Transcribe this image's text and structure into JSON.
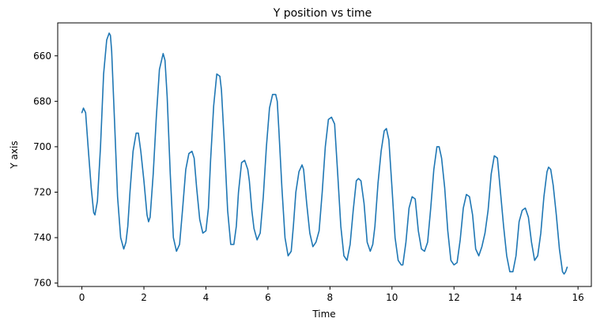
{
  "chart_data": {
    "type": "line",
    "title": "Y position vs time",
    "xlabel": "Time",
    "ylabel": "Y axis",
    "xlim": [
      -0.78,
      16.43
    ],
    "ylim": [
      761.5,
      645.5
    ],
    "y_inverted": true,
    "xticks": [
      0,
      2,
      4,
      6,
      8,
      10,
      12,
      14,
      16
    ],
    "xtick_labels": [
      "0",
      "2",
      "4",
      "6",
      "8",
      "10",
      "12",
      "14",
      "16"
    ],
    "yticks": [
      660,
      680,
      700,
      720,
      740,
      760
    ],
    "ytick_labels": [
      "660",
      "680",
      "700",
      "720",
      "740",
      "760"
    ],
    "grid": false,
    "colors": {
      "line": "#1f77b4",
      "axes": "#000000",
      "background": "#ffffff"
    },
    "series": [
      {
        "name": "Y position",
        "x": [
          0.0,
          0.05,
          0.12,
          0.2,
          0.3,
          0.38,
          0.42,
          0.5,
          0.6,
          0.7,
          0.8,
          0.88,
          0.92,
          0.96,
          1.05,
          1.15,
          1.25,
          1.35,
          1.42,
          1.48,
          1.55,
          1.65,
          1.75,
          1.82,
          1.9,
          2.0,
          2.1,
          2.15,
          2.2,
          2.3,
          2.4,
          2.5,
          2.62,
          2.68,
          2.75,
          2.85,
          2.95,
          3.05,
          3.15,
          3.25,
          3.35,
          3.45,
          3.55,
          3.62,
          3.7,
          3.8,
          3.9,
          4.0,
          4.08,
          4.15,
          4.25,
          4.35,
          4.45,
          4.5,
          4.6,
          4.7,
          4.8,
          4.9,
          4.98,
          5.05,
          5.15,
          5.25,
          5.35,
          5.4,
          5.48,
          5.55,
          5.65,
          5.75,
          5.85,
          5.95,
          6.05,
          6.15,
          6.25,
          6.3,
          6.35,
          6.45,
          6.55,
          6.65,
          6.75,
          6.82,
          6.9,
          7.0,
          7.1,
          7.15,
          7.25,
          7.35,
          7.45,
          7.55,
          7.65,
          7.75,
          7.85,
          7.95,
          8.05,
          8.15,
          8.25,
          8.35,
          8.45,
          8.55,
          8.65,
          8.75,
          8.85,
          8.92,
          9.0,
          9.1,
          9.2,
          9.3,
          9.38,
          9.45,
          9.55,
          9.65,
          9.75,
          9.82,
          9.9,
          10.0,
          10.1,
          10.2,
          10.3,
          10.35,
          10.45,
          10.55,
          10.65,
          10.75,
          10.85,
          10.95,
          11.05,
          11.15,
          11.25,
          11.35,
          11.45,
          11.52,
          11.6,
          11.7,
          11.8,
          11.9,
          12.0,
          12.1,
          12.2,
          12.3,
          12.4,
          12.5,
          12.6,
          12.7,
          12.8,
          12.9,
          13.0,
          13.1,
          13.2,
          13.3,
          13.4,
          13.5,
          13.6,
          13.7,
          13.8,
          13.9,
          14.0,
          14.1,
          14.2,
          14.3,
          14.4,
          14.5,
          14.6,
          14.7,
          14.8,
          14.9,
          15.0,
          15.05,
          15.12,
          15.2,
          15.3,
          15.4,
          15.5,
          15.55,
          15.6,
          15.65
        ],
        "y": [
          685,
          683,
          685,
          700,
          718,
          729,
          730,
          724,
          700,
          668,
          653,
          650,
          651,
          658,
          688,
          722,
          740,
          745,
          742,
          735,
          720,
          702,
          694,
          694,
          702,
          715,
          730,
          733,
          731,
          712,
          687,
          666,
          659,
          662,
          678,
          712,
          740,
          746,
          743,
          727,
          710,
          703,
          702,
          705,
          718,
          732,
          738,
          737,
          727,
          706,
          682,
          668,
          669,
          675,
          700,
          728,
          743,
          743,
          735,
          720,
          707,
          706,
          710,
          715,
          728,
          736,
          741,
          738,
          722,
          700,
          683,
          677,
          677,
          680,
          692,
          718,
          740,
          748,
          746,
          735,
          720,
          711,
          708,
          710,
          725,
          738,
          744,
          742,
          737,
          720,
          700,
          688,
          687,
          690,
          712,
          735,
          748,
          750,
          743,
          728,
          715,
          714,
          715,
          725,
          742,
          746,
          743,
          735,
          716,
          702,
          693,
          692,
          697,
          718,
          740,
          750,
          752,
          752,
          742,
          727,
          722,
          723,
          737,
          745,
          746,
          742,
          727,
          710,
          700,
          700,
          705,
          718,
          737,
          750,
          752,
          751,
          741,
          727,
          721,
          722,
          730,
          745,
          748,
          744,
          738,
          728,
          712,
          704,
          705,
          720,
          735,
          748,
          755,
          755,
          748,
          733,
          728,
          727,
          731,
          742,
          750,
          748,
          738,
          722,
          711,
          709,
          710,
          717,
          730,
          745,
          755,
          756,
          755,
          753
        ]
      }
    ]
  }
}
